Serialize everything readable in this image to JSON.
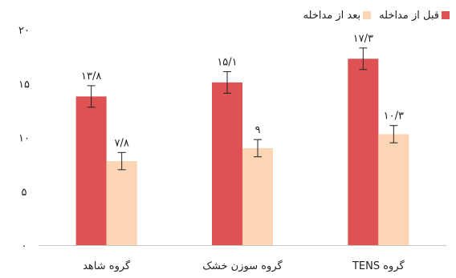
{
  "chart_data": {
    "type": "bar",
    "categories": [
      "گروه TENS",
      "گروه سوزن خشک",
      "گروه شاهد"
    ],
    "series": [
      {
        "name": "قبل از مداخله",
        "values": [
          17.3,
          15.1,
          13.8
        ],
        "labels": [
          "۱۷/۳",
          "۱۵/۱",
          "۱۳/۸"
        ],
        "errors": [
          1.0,
          1.0,
          1.0
        ],
        "color": "#de5254"
      },
      {
        "name": "بعد از مداخله",
        "values": [
          10.3,
          9,
          7.8
        ],
        "labels": [
          "۱۰/۳",
          "۹",
          "۷/۸"
        ],
        "errors": [
          0.8,
          0.8,
          0.8
        ],
        "color": "#fcd5b5"
      }
    ],
    "yticks": [
      0,
      5,
      10,
      15,
      20
    ],
    "ytick_labels": [
      "۰",
      "۵",
      "۱۰",
      "۱۵",
      "۲۰"
    ],
    "ylim": [
      0,
      20
    ],
    "grid": false,
    "legend_position": "top-right",
    "title": "",
    "xlabel": "",
    "ylabel": ""
  }
}
